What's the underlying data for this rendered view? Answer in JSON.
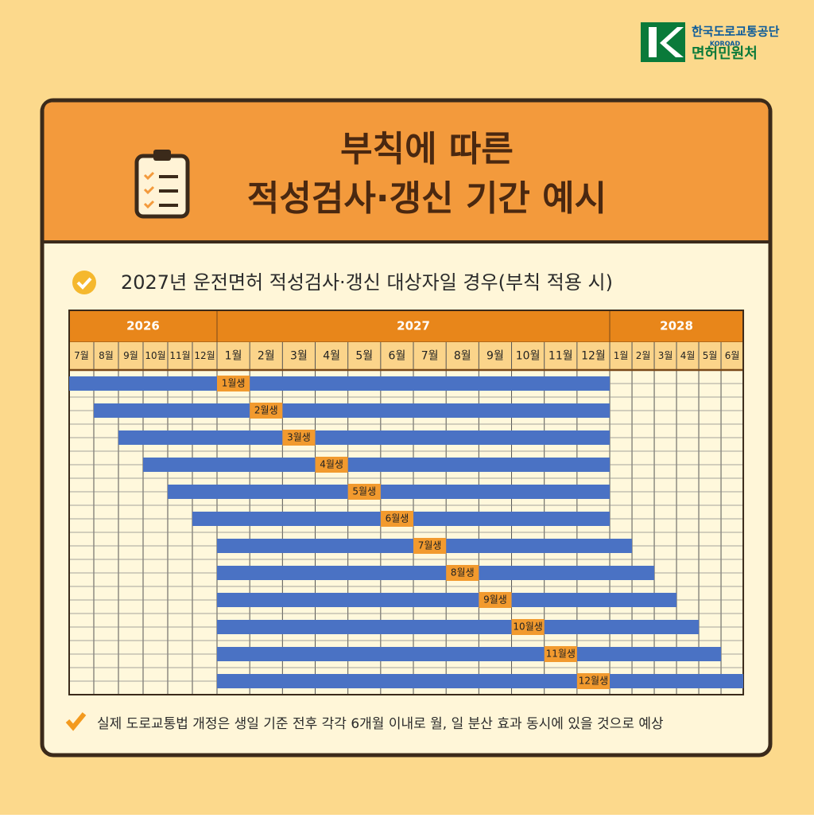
{
  "logo": {
    "org": "한국도로교통공단",
    "eng": "KOROAD",
    "dept": "면허민원처"
  },
  "title_lines": [
    "부칙에 따른",
    "적성검사·갱신 기간 예시"
  ],
  "chart_data": {
    "type": "gantt",
    "title": "2027년 운전면허 적성검사·갱신 대상자일 경우(부칙 적용 시)",
    "groups": [
      {
        "name": "2026",
        "months": [
          "7월",
          "8월",
          "9월",
          "10월",
          "11월",
          "12월"
        ]
      },
      {
        "name": "2027",
        "months": [
          "1월",
          "2월",
          "3월",
          "4월",
          "5월",
          "6월",
          "7월",
          "8월",
          "9월",
          "10월",
          "11월",
          "12월"
        ]
      },
      {
        "name": "2028",
        "months": [
          "1월",
          "2월",
          "3월",
          "4월",
          "5월",
          "6월"
        ]
      }
    ],
    "color": "#4a72c4",
    "label_color": "#f29a2e",
    "bars": [
      {
        "label": "1월생",
        "start": 0,
        "end": 17,
        "mark_at": 6
      },
      {
        "label": "2월생",
        "start": 1,
        "end": 17,
        "mark_at": 7
      },
      {
        "label": "3월생",
        "start": 2,
        "end": 17,
        "mark_at": 8
      },
      {
        "label": "4월생",
        "start": 3,
        "end": 17,
        "mark_at": 9
      },
      {
        "label": "5월생",
        "start": 4,
        "end": 17,
        "mark_at": 10
      },
      {
        "label": "6월생",
        "start": 5,
        "end": 17,
        "mark_at": 11
      },
      {
        "label": "7월생",
        "start": 6,
        "end": 18,
        "mark_at": 12
      },
      {
        "label": "8월생",
        "start": 6,
        "end": 19,
        "mark_at": 13
      },
      {
        "label": "9월생",
        "start": 6,
        "end": 20,
        "mark_at": 14
      },
      {
        "label": "10월생",
        "start": 6,
        "end": 21,
        "mark_at": 15
      },
      {
        "label": "11월생",
        "start": 6,
        "end": 22,
        "mark_at": 16
      },
      {
        "label": "12월생",
        "start": 6,
        "end": 23,
        "mark_at": 17
      }
    ]
  },
  "footnote": "실제 도로교통법 개정은 생일 기준 전후 각각 6개월 이내로 월, 일 분산 효과 동시에 있을 것으로 예상"
}
